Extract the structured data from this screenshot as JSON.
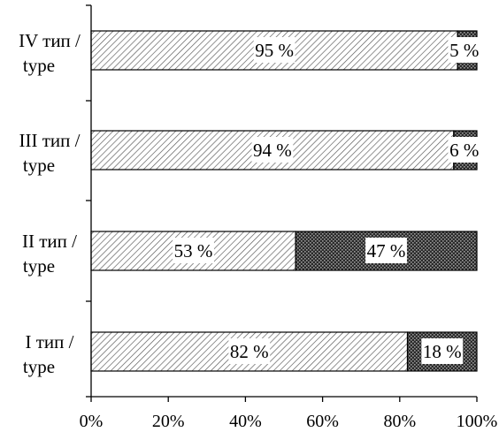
{
  "chart_data": {
    "type": "bar",
    "orientation": "horizontal",
    "stacked": "percent",
    "categories": [
      [
        "IV тип /",
        "type"
      ],
      [
        "III тип /",
        "type"
      ],
      [
        "II тип /",
        "type"
      ],
      [
        "I тип /",
        "type"
      ]
    ],
    "series": [
      {
        "values": [
          95,
          94,
          53,
          82
        ],
        "labels": [
          "95 %",
          "94 %",
          "53 %",
          "82 %"
        ],
        "pattern": "light-diagonal-hatch"
      },
      {
        "values": [
          5,
          6,
          47,
          18
        ],
        "labels": [
          "5 %",
          "6 %",
          "47 %",
          "18 %"
        ],
        "pattern": "dark-dotted"
      }
    ],
    "x_ticks": [
      "0%",
      "20%",
      "40%",
      "60%",
      "80%",
      "100%"
    ],
    "xlim": [
      0,
      100
    ],
    "title": "",
    "xlabel": "",
    "ylabel": "",
    "grid": false,
    "legend": "none",
    "colors": {
      "fill_light": "#ffffff",
      "hatch": "#555555",
      "fill_dark": "#2a2a2a",
      "dots": "#9a9a9a",
      "outline": "#000000"
    }
  }
}
